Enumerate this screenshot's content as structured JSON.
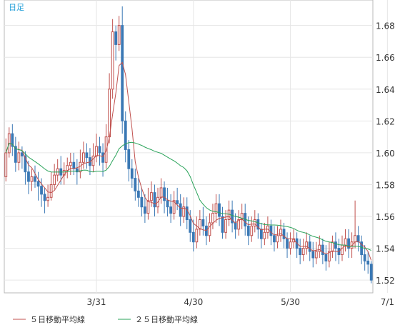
{
  "chart_data": {
    "type": "candlestick",
    "period_label": "日足",
    "y_ticks": [
      1.52,
      1.54,
      1.56,
      1.58,
      1.6,
      1.62,
      1.64,
      1.66,
      1.68
    ],
    "y_tick_labels": [
      "1.52",
      "1.54",
      "1.56",
      "1.58",
      "1.60",
      "1.62",
      "1.64",
      "1.66",
      "1.68"
    ],
    "ylim": [
      1.512,
      1.696
    ],
    "x_tick_labels": [
      "3/31",
      "4/30",
      "5/30",
      "7/1"
    ],
    "x_tick_index": [
      28,
      58,
      88,
      118
    ],
    "grid": true,
    "legend": [
      {
        "label": "５日移動平均線",
        "color": "#c0504d"
      },
      {
        "label": "２５日移動平均線",
        "color": "#2aa35a"
      }
    ],
    "candles": [
      [
        1.585,
        1.6,
        1.609,
        1.582
      ],
      [
        1.6,
        1.612,
        1.616,
        1.597
      ],
      [
        1.612,
        1.604,
        1.618,
        1.598
      ],
      [
        1.604,
        1.594,
        1.61,
        1.588
      ],
      [
        1.594,
        1.6,
        1.607,
        1.589
      ],
      [
        1.6,
        1.598,
        1.604,
        1.59
      ],
      [
        1.598,
        1.588,
        1.601,
        1.58
      ],
      [
        1.588,
        1.582,
        1.595,
        1.574
      ],
      [
        1.582,
        1.585,
        1.59,
        1.576
      ],
      [
        1.585,
        1.582,
        1.592,
        1.578
      ],
      [
        1.582,
        1.579,
        1.588,
        1.57
      ],
      [
        1.579,
        1.574,
        1.584,
        1.566
      ],
      [
        1.574,
        1.57,
        1.578,
        1.562
      ],
      [
        1.57,
        1.572,
        1.58,
        1.566
      ],
      [
        1.572,
        1.58,
        1.588,
        1.57
      ],
      [
        1.58,
        1.586,
        1.593,
        1.577
      ],
      [
        1.586,
        1.59,
        1.596,
        1.582
      ],
      [
        1.59,
        1.586,
        1.598,
        1.58
      ],
      [
        1.586,
        1.589,
        1.594,
        1.58
      ],
      [
        1.589,
        1.592,
        1.597,
        1.584
      ],
      [
        1.592,
        1.594,
        1.6,
        1.586
      ],
      [
        1.594,
        1.59,
        1.6,
        1.586
      ],
      [
        1.59,
        1.588,
        1.596,
        1.58
      ],
      [
        1.588,
        1.594,
        1.602,
        1.584
      ],
      [
        1.594,
        1.6,
        1.607,
        1.59
      ],
      [
        1.6,
        1.597,
        1.606,
        1.59
      ],
      [
        1.597,
        1.592,
        1.603,
        1.586
      ],
      [
        1.592,
        1.598,
        1.606,
        1.588
      ],
      [
        1.598,
        1.604,
        1.612,
        1.594
      ],
      [
        1.604,
        1.6,
        1.61,
        1.592
      ],
      [
        1.6,
        1.594,
        1.606,
        1.585
      ],
      [
        1.594,
        1.61,
        1.618,
        1.59
      ],
      [
        1.61,
        1.64,
        1.65,
        1.606
      ],
      [
        1.64,
        1.676,
        1.684,
        1.634
      ],
      [
        1.676,
        1.668,
        1.68,
        1.658
      ],
      [
        1.668,
        1.68,
        1.686,
        1.664
      ],
      [
        1.68,
        1.62,
        1.692,
        1.612
      ],
      [
        1.62,
        1.602,
        1.626,
        1.594
      ],
      [
        1.602,
        1.59,
        1.608,
        1.582
      ],
      [
        1.59,
        1.584,
        1.596,
        1.578
      ],
      [
        1.584,
        1.576,
        1.59,
        1.57
      ],
      [
        1.576,
        1.572,
        1.584,
        1.566
      ],
      [
        1.572,
        1.566,
        1.578,
        1.56
      ],
      [
        1.566,
        1.562,
        1.574,
        1.556
      ],
      [
        1.562,
        1.57,
        1.578,
        1.558
      ],
      [
        1.57,
        1.575,
        1.582,
        1.566
      ],
      [
        1.575,
        1.566,
        1.58,
        1.56
      ],
      [
        1.566,
        1.572,
        1.578,
        1.562
      ],
      [
        1.572,
        1.578,
        1.584,
        1.568
      ],
      [
        1.578,
        1.57,
        1.582,
        1.562
      ],
      [
        1.57,
        1.566,
        1.578,
        1.56
      ],
      [
        1.566,
        1.562,
        1.574,
        1.556
      ],
      [
        1.562,
        1.57,
        1.576,
        1.558
      ],
      [
        1.57,
        1.568,
        1.578,
        1.564
      ],
      [
        1.568,
        1.56,
        1.574,
        1.554
      ],
      [
        1.56,
        1.566,
        1.572,
        1.556
      ],
      [
        1.566,
        1.558,
        1.572,
        1.552
      ],
      [
        1.558,
        1.55,
        1.564,
        1.544
      ],
      [
        1.55,
        1.544,
        1.558,
        1.538
      ],
      [
        1.544,
        1.552,
        1.56,
        1.54
      ],
      [
        1.552,
        1.558,
        1.564,
        1.548
      ],
      [
        1.558,
        1.554,
        1.566,
        1.548
      ],
      [
        1.554,
        1.548,
        1.56,
        1.542
      ],
      [
        1.548,
        1.556,
        1.562,
        1.544
      ],
      [
        1.556,
        1.562,
        1.568,
        1.552
      ],
      [
        1.562,
        1.568,
        1.574,
        1.556
      ],
      [
        1.568,
        1.56,
        1.574,
        1.554
      ],
      [
        1.56,
        1.55,
        1.566,
        1.546
      ],
      [
        1.55,
        1.558,
        1.564,
        1.546
      ],
      [
        1.558,
        1.564,
        1.57,
        1.554
      ],
      [
        1.564,
        1.556,
        1.57,
        1.55
      ],
      [
        1.556,
        1.552,
        1.562,
        1.546
      ],
      [
        1.552,
        1.558,
        1.564,
        1.548
      ],
      [
        1.558,
        1.562,
        1.568,
        1.552
      ],
      [
        1.562,
        1.554,
        1.568,
        1.548
      ],
      [
        1.554,
        1.548,
        1.56,
        1.542
      ],
      [
        1.548,
        1.554,
        1.56,
        1.544
      ],
      [
        1.554,
        1.558,
        1.564,
        1.55
      ],
      [
        1.558,
        1.552,
        1.562,
        1.546
      ],
      [
        1.552,
        1.546,
        1.556,
        1.54
      ],
      [
        1.546,
        1.55,
        1.556,
        1.542
      ],
      [
        1.55,
        1.554,
        1.56,
        1.546
      ],
      [
        1.554,
        1.548,
        1.558,
        1.542
      ],
      [
        1.548,
        1.544,
        1.554,
        1.538
      ],
      [
        1.544,
        1.548,
        1.554,
        1.54
      ],
      [
        1.548,
        1.552,
        1.558,
        1.544
      ],
      [
        1.552,
        1.546,
        1.556,
        1.54
      ],
      [
        1.546,
        1.54,
        1.55,
        1.534
      ],
      [
        1.54,
        1.544,
        1.55,
        1.536
      ],
      [
        1.544,
        1.546,
        1.552,
        1.54
      ],
      [
        1.546,
        1.54,
        1.55,
        1.534
      ],
      [
        1.54,
        1.536,
        1.546,
        1.53
      ],
      [
        1.536,
        1.54,
        1.546,
        1.532
      ],
      [
        1.54,
        1.544,
        1.55,
        1.536
      ],
      [
        1.544,
        1.538,
        1.548,
        1.532
      ],
      [
        1.538,
        1.534,
        1.544,
        1.528
      ],
      [
        1.534,
        1.538,
        1.544,
        1.53
      ],
      [
        1.538,
        1.542,
        1.548,
        1.534
      ],
      [
        1.542,
        1.536,
        1.546,
        1.53
      ],
      [
        1.536,
        1.532,
        1.542,
        1.526
      ],
      [
        1.532,
        1.538,
        1.544,
        1.528
      ],
      [
        1.538,
        1.544,
        1.548,
        1.534
      ],
      [
        1.544,
        1.54,
        1.55,
        1.532
      ],
      [
        1.54,
        1.536,
        1.546,
        1.53
      ],
      [
        1.536,
        1.542,
        1.548,
        1.532
      ],
      [
        1.542,
        1.546,
        1.552,
        1.538
      ],
      [
        1.546,
        1.54,
        1.552,
        1.534
      ],
      [
        1.54,
        1.544,
        1.55,
        1.534
      ],
      [
        1.544,
        1.548,
        1.57,
        1.54
      ],
      [
        1.548,
        1.544,
        1.554,
        1.538
      ],
      [
        1.544,
        1.536,
        1.548,
        1.53
      ],
      [
        1.536,
        1.532,
        1.542,
        1.526
      ],
      [
        1.532,
        1.53,
        1.538,
        1.524
      ],
      [
        1.53,
        1.52,
        1.532,
        1.518
      ]
    ]
  }
}
